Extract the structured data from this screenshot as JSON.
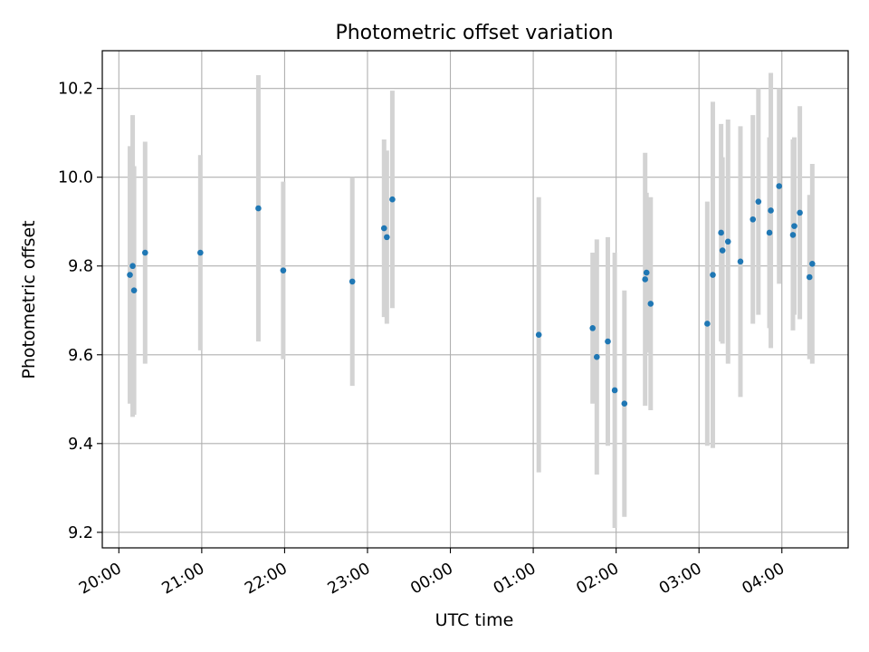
{
  "chart_data": {
    "type": "scatter",
    "title": "Photometric offset variation",
    "xlabel": "UTC time",
    "ylabel": "Photometric offset",
    "grid": true,
    "x_range": [
      "19:48",
      "04:48"
    ],
    "ylim": [
      9.165,
      10.285
    ],
    "x_ticks": [
      "20:00",
      "21:00",
      "22:00",
      "23:00",
      "00:00",
      "01:00",
      "02:00",
      "03:00",
      "04:00"
    ],
    "y_ticks": [
      "9.2",
      "9.4",
      "9.6",
      "9.8",
      "10.0",
      "10.2"
    ],
    "colors": {
      "point": "#1f77b4",
      "errorbar": "#d3d3d3",
      "grid": "#b0b0b0"
    },
    "points": [
      {
        "t": "20:08",
        "y": 9.78,
        "err": 0.29
      },
      {
        "t": "20:10",
        "y": 9.8,
        "err": 0.34
      },
      {
        "t": "20:11",
        "y": 9.745,
        "err": 0.28
      },
      {
        "t": "20:19",
        "y": 9.83,
        "err": 0.25
      },
      {
        "t": "20:59",
        "y": 9.83,
        "err": 0.22
      },
      {
        "t": "21:41",
        "y": 9.93,
        "err": 0.3
      },
      {
        "t": "21:59",
        "y": 9.79,
        "err": 0.2
      },
      {
        "t": "22:49",
        "y": 9.765,
        "err": 0.235
      },
      {
        "t": "23:12",
        "y": 9.885,
        "err": 0.2
      },
      {
        "t": "23:14",
        "y": 9.865,
        "err": 0.195
      },
      {
        "t": "23:18",
        "y": 9.95,
        "err": 0.245
      },
      {
        "t": "01:04",
        "y": 9.645,
        "err": 0.31
      },
      {
        "t": "01:43",
        "y": 9.66,
        "err": 0.17
      },
      {
        "t": "01:46",
        "y": 9.595,
        "err": 0.265
      },
      {
        "t": "01:54",
        "y": 9.63,
        "err": 0.235
      },
      {
        "t": "01:59",
        "y": 9.52,
        "err": 0.31
      },
      {
        "t": "02:06",
        "y": 9.49,
        "err": 0.255
      },
      {
        "t": "02:21",
        "y": 9.77,
        "err": 0.285
      },
      {
        "t": "02:22",
        "y": 9.785,
        "err": 0.18
      },
      {
        "t": "02:25",
        "y": 9.715,
        "err": 0.24
      },
      {
        "t": "03:06",
        "y": 9.67,
        "err": 0.275
      },
      {
        "t": "03:10",
        "y": 9.78,
        "err": 0.39
      },
      {
        "t": "03:16",
        "y": 9.875,
        "err": 0.245
      },
      {
        "t": "03:17",
        "y": 9.835,
        "err": 0.21
      },
      {
        "t": "03:21",
        "y": 9.855,
        "err": 0.275
      },
      {
        "t": "03:30",
        "y": 9.81,
        "err": 0.305
      },
      {
        "t": "03:39",
        "y": 9.905,
        "err": 0.235
      },
      {
        "t": "03:43",
        "y": 9.945,
        "err": 0.255
      },
      {
        "t": "03:51",
        "y": 9.875,
        "err": 0.215
      },
      {
        "t": "03:52",
        "y": 9.925,
        "err": 0.31
      },
      {
        "t": "03:58",
        "y": 9.98,
        "err": 0.22
      },
      {
        "t": "04:08",
        "y": 9.87,
        "err": 0.215
      },
      {
        "t": "04:09",
        "y": 9.89,
        "err": 0.2
      },
      {
        "t": "04:13",
        "y": 9.92,
        "err": 0.24
      },
      {
        "t": "04:20",
        "y": 9.775,
        "err": 0.185
      },
      {
        "t": "04:22",
        "y": 9.805,
        "err": 0.225
      }
    ]
  }
}
